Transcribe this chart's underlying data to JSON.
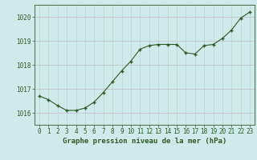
{
  "x": [
    0,
    1,
    2,
    3,
    4,
    5,
    6,
    7,
    8,
    9,
    10,
    11,
    12,
    13,
    14,
    15,
    16,
    17,
    18,
    19,
    20,
    21,
    22,
    23
  ],
  "y": [
    1016.7,
    1016.55,
    1016.3,
    1016.1,
    1016.1,
    1016.2,
    1016.45,
    1016.85,
    1017.3,
    1017.75,
    1018.15,
    1018.65,
    1018.8,
    1018.85,
    1018.85,
    1018.85,
    1018.5,
    1018.45,
    1018.8,
    1018.85,
    1019.1,
    1019.45,
    1019.95,
    1020.2
  ],
  "line_color": "#2d5a27",
  "marker_color": "#2d5a27",
  "bg_color": "#ceeaea",
  "grid_color_h": "#c8b8c8",
  "grid_color_v": "#b8d8c8",
  "xlabel": "Graphe pression niveau de la mer (hPa)",
  "ylim": [
    1015.5,
    1020.5
  ],
  "xlim": [
    -0.5,
    23.5
  ],
  "yticks": [
    1016,
    1017,
    1018,
    1019,
    1020
  ],
  "xticks": [
    0,
    1,
    2,
    3,
    4,
    5,
    6,
    7,
    8,
    9,
    10,
    11,
    12,
    13,
    14,
    15,
    16,
    17,
    18,
    19,
    20,
    21,
    22,
    23
  ],
  "tick_fontsize": 5.5,
  "xlabel_fontsize": 6.5,
  "line_width": 0.8,
  "marker_size": 3.5
}
